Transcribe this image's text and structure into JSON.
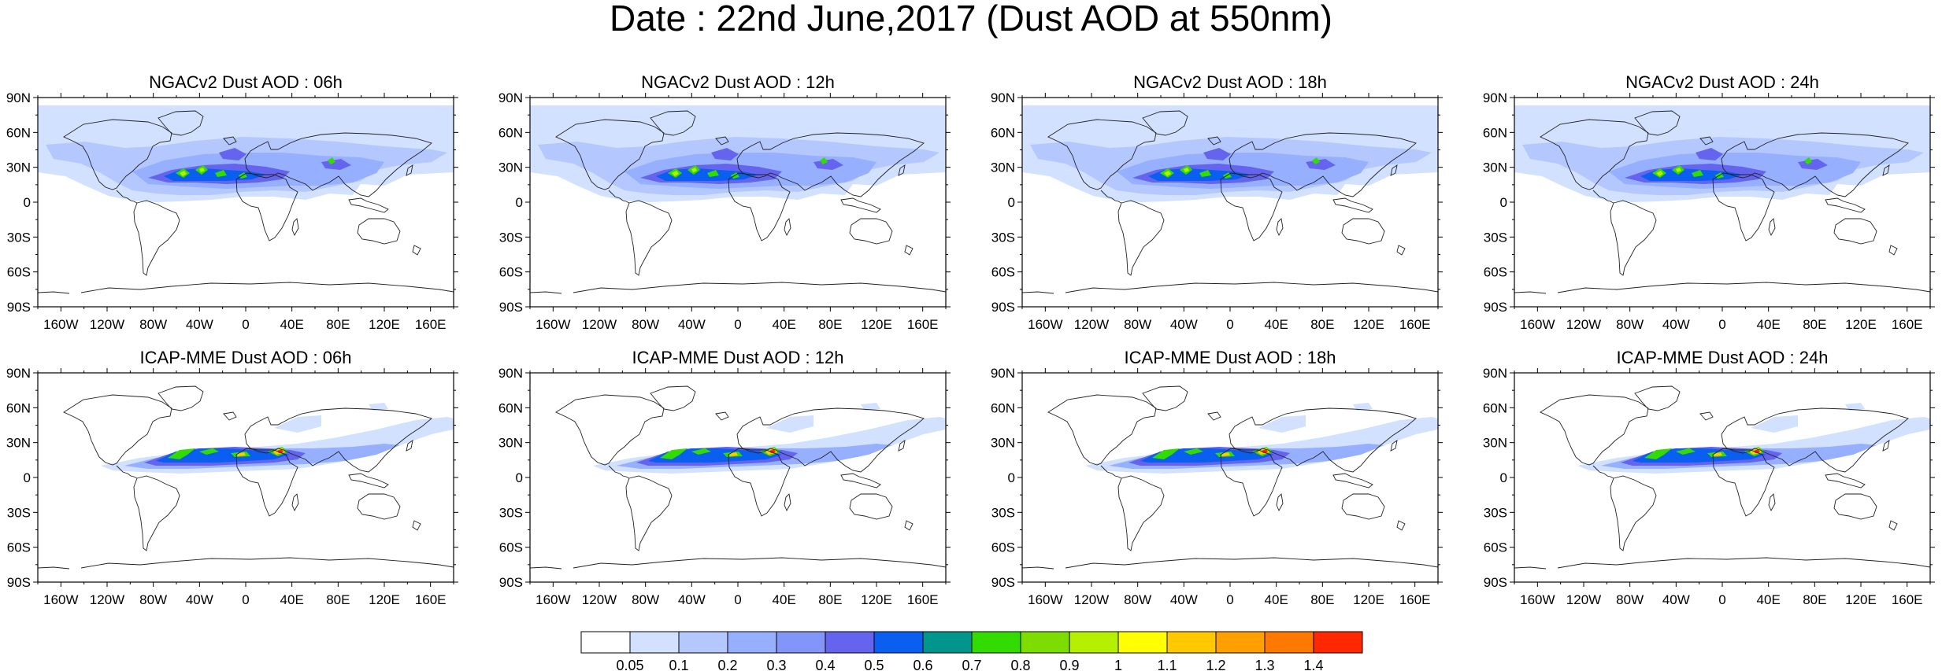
{
  "title": "Date : 22nd June,2017 (Dust AOD at 550nm)",
  "panels": [
    {
      "title": "NGACv2 Dust AOD : 06h",
      "model": "NGACv2"
    },
    {
      "title": "NGACv2 Dust AOD : 12h",
      "model": "NGACv2"
    },
    {
      "title": "NGACv2 Dust AOD : 18h",
      "model": "NGACv2"
    },
    {
      "title": "NGACv2 Dust AOD : 24h",
      "model": "NGACv2"
    },
    {
      "title": "ICAP-MME Dust AOD : 06h",
      "model": "ICAP-MME"
    },
    {
      "title": "ICAP-MME Dust AOD : 12h",
      "model": "ICAP-MME"
    },
    {
      "title": "ICAP-MME Dust AOD : 18h",
      "model": "ICAP-MME"
    },
    {
      "title": "ICAP-MME Dust AOD : 24h",
      "model": "ICAP-MME"
    }
  ],
  "lat_labels": [
    "90N",
    "60N",
    "30N",
    "0",
    "30S",
    "60S",
    "90S"
  ],
  "lon_labels": [
    "160W",
    "120W",
    "80W",
    "40W",
    "0",
    "40E",
    "80E",
    "120E",
    "160E"
  ],
  "lon_values": [
    -160,
    -120,
    -80,
    -40,
    0,
    40,
    80,
    120,
    160
  ],
  "lat_values": [
    90,
    60,
    30,
    0,
    -30,
    -60,
    -90
  ],
  "colorbar": {
    "labels": [
      "0.05",
      "0.1",
      "0.2",
      "0.3",
      "0.4",
      "0.5",
      "0.6",
      "0.7",
      "0.8",
      "0.9",
      "1",
      "1.1",
      "1.2",
      "1.3",
      "1.4"
    ],
    "colors": [
      "#ffffff",
      "#d2e1ff",
      "#b4c8ff",
      "#96afff",
      "#8296fa",
      "#6464ee",
      "#0a5ff0",
      "#00968c",
      "#32dc00",
      "#7ddc00",
      "#b4f000",
      "#ffff00",
      "#ffc800",
      "#ffa000",
      "#ff7800",
      "#ff2800"
    ]
  },
  "colors": {
    "coast": "#222222",
    "frame": "#000000"
  }
}
